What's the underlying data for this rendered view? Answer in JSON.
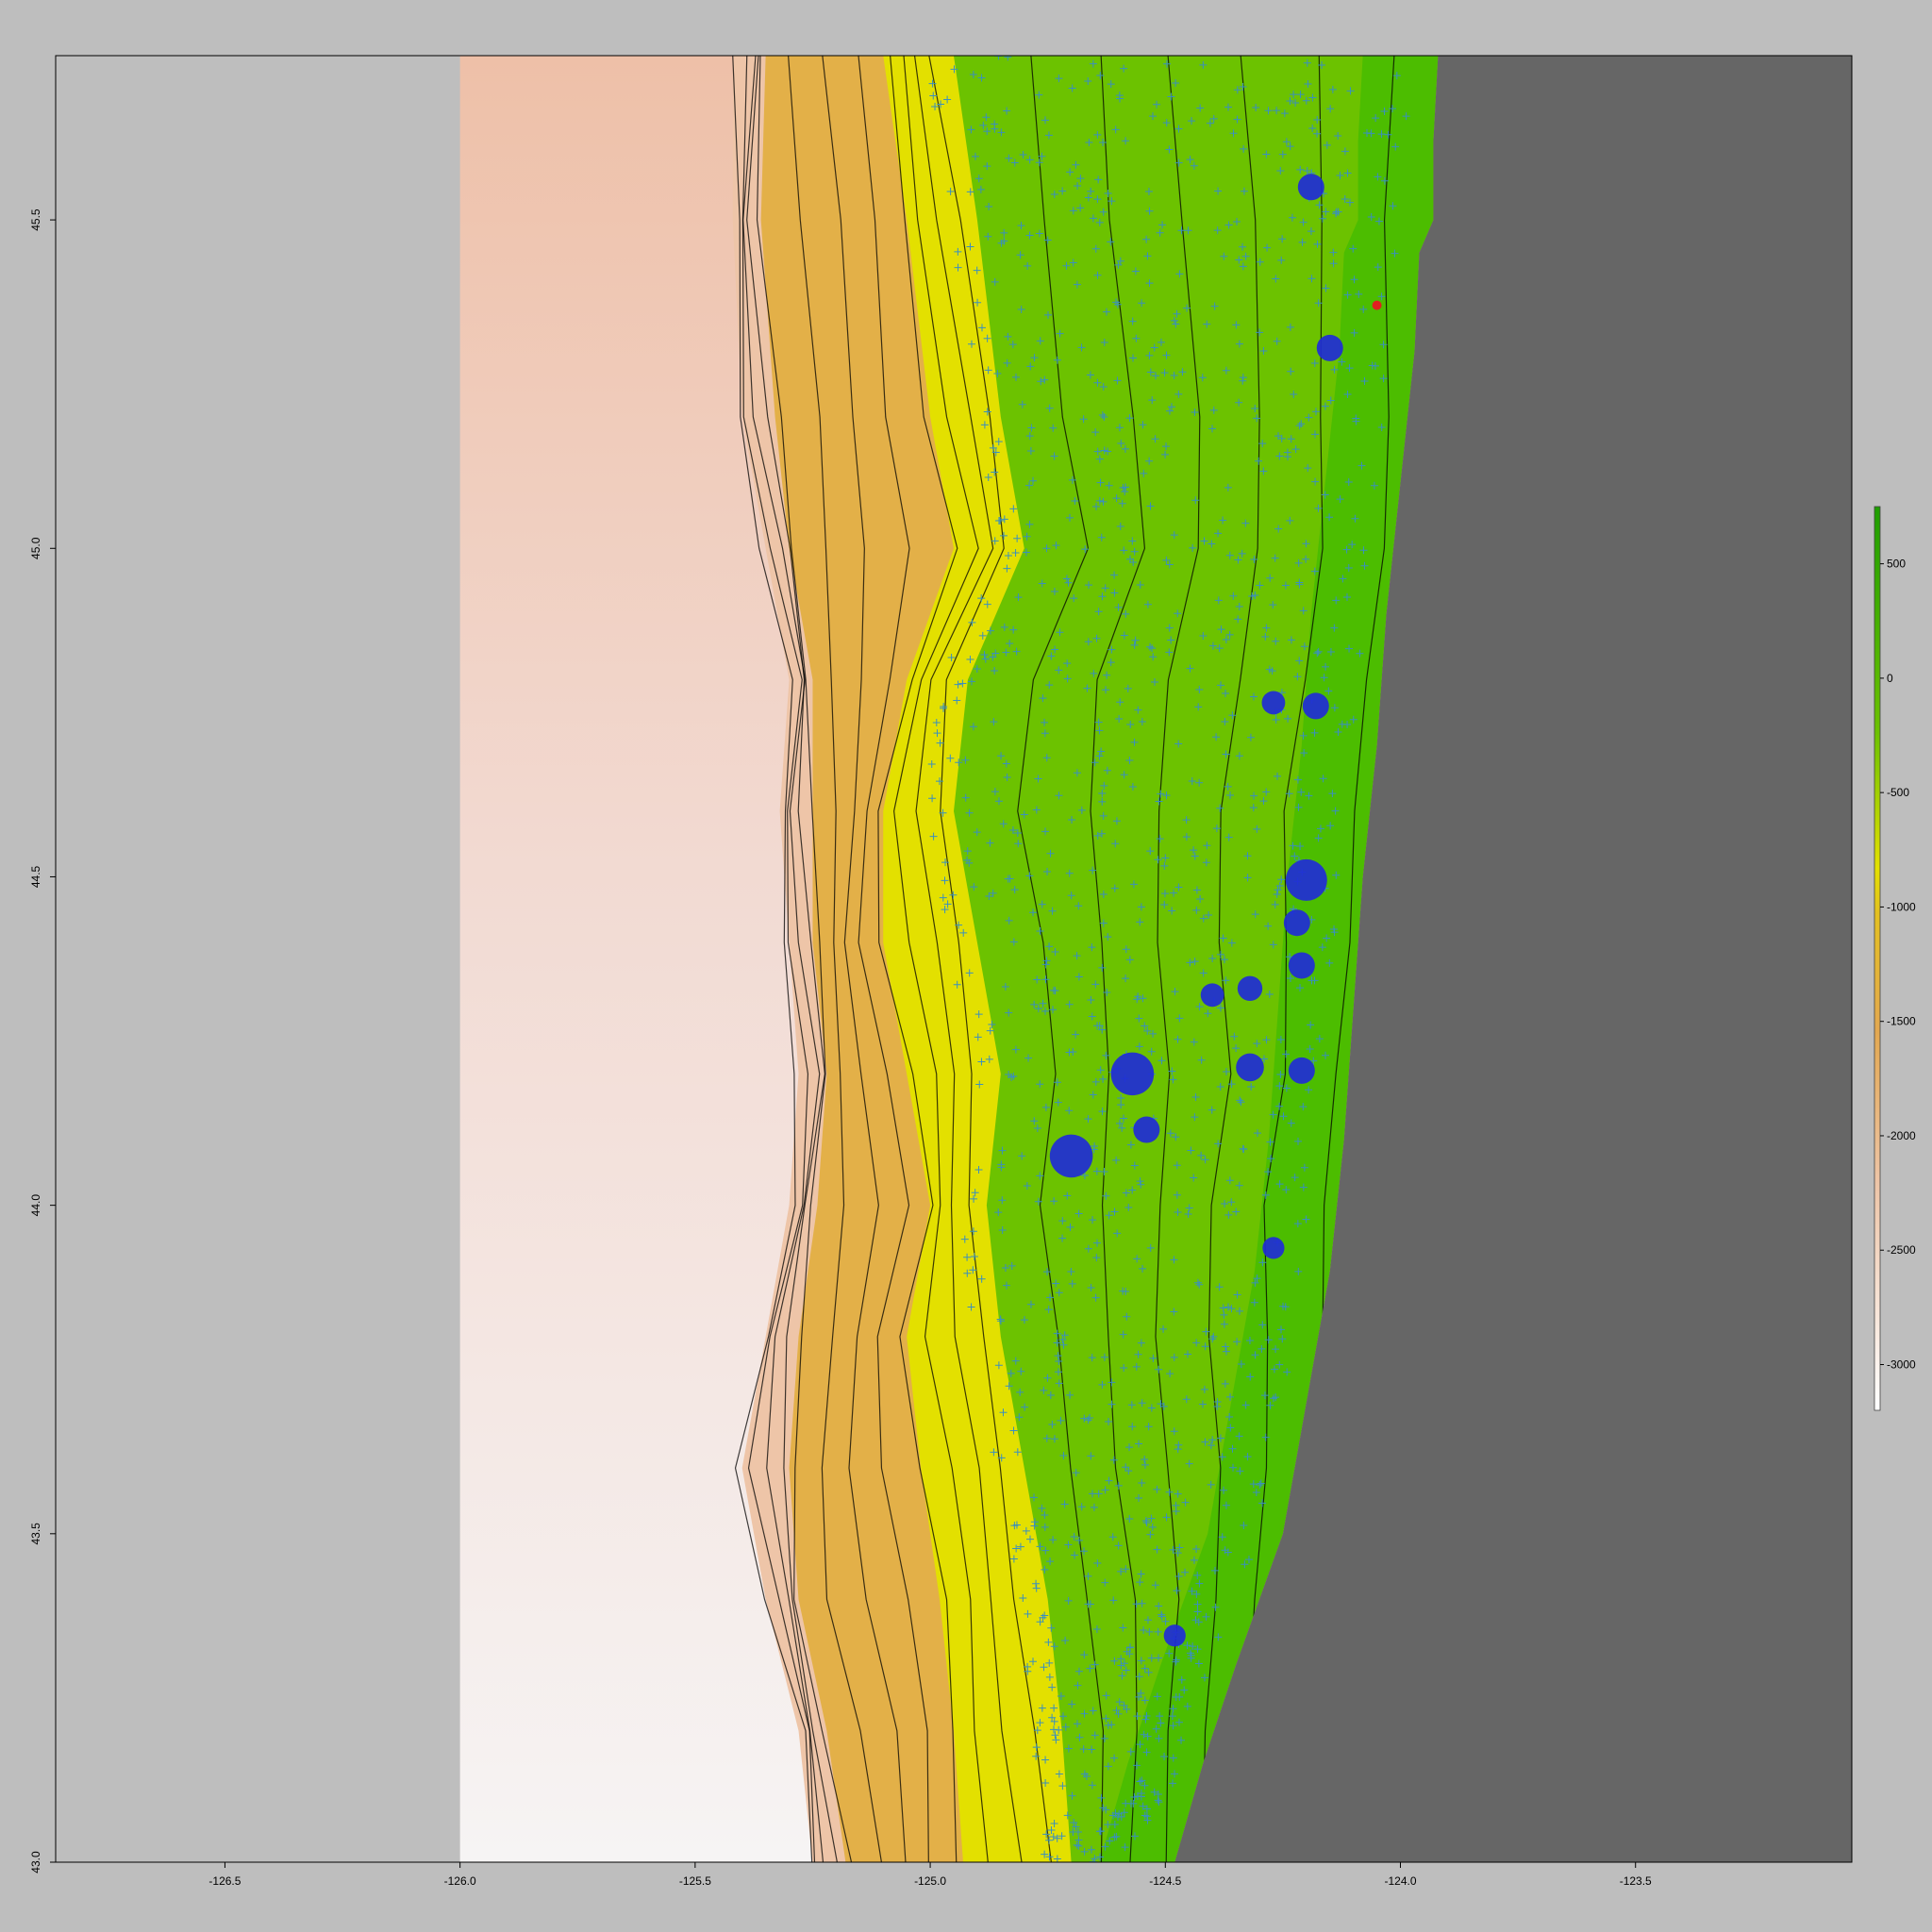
{
  "map": {
    "x_axis": {
      "range": [
        -126.86,
        -123.04
      ],
      "ticks": [
        -126.5,
        -126.0,
        -125.5,
        -125.0,
        -124.5,
        -124.0,
        -123.5
      ],
      "tick_labels": [
        "-126.5",
        "-126.0",
        "-125.5",
        "-125.0",
        "-124.5",
        "-124.0",
        "-123.5"
      ]
    },
    "y_axis": {
      "range": [
        43.0,
        45.75
      ],
      "ticks": [
        43.0,
        43.5,
        44.0,
        44.5,
        45.0,
        45.5
      ],
      "tick_labels": [
        "43.0",
        "43.5",
        "44.0",
        "44.5",
        "45.0",
        "45.5"
      ]
    },
    "raster_lon_range": [
      -126.0,
      -123.5
    ],
    "colors": {
      "background": "#bebebe",
      "land": "#666666",
      "deep_water": "#f6f2f2",
      "slope": "#eec5a8",
      "mid_depth": "#e3b048",
      "shelf_edge": "#e3e000",
      "shelf": "#6cc200",
      "nearshore": "#4cbd00",
      "sample_points": "#1f2dd6",
      "highlight_point": "#e02020",
      "cross_markers": "#3a8fbf"
    },
    "legend": {
      "ticks": [
        500,
        0,
        -500,
        -1000,
        -1500,
        -2000,
        -2500,
        -3000
      ],
      "tick_labels": [
        "500",
        "0",
        "-500",
        "-1000",
        "-1500",
        "-2000",
        "-2500",
        "-3000"
      ],
      "range": [
        -3200,
        750
      ]
    },
    "coastline": [
      [
        45.75,
        -123.92
      ],
      [
        45.62,
        -123.93
      ],
      [
        45.5,
        -123.93
      ],
      [
        45.45,
        -123.96
      ],
      [
        45.3,
        -123.97
      ],
      [
        45.1,
        -124.0
      ],
      [
        44.9,
        -124.03
      ],
      [
        44.7,
        -124.05
      ],
      [
        44.5,
        -124.08
      ],
      [
        44.3,
        -124.1
      ],
      [
        44.1,
        -124.12
      ],
      [
        43.9,
        -124.15
      ],
      [
        43.7,
        -124.2
      ],
      [
        43.5,
        -124.25
      ],
      [
        43.3,
        -124.35
      ],
      [
        43.15,
        -124.42
      ],
      [
        43.0,
        -124.48
      ]
    ],
    "slope_base": [
      [
        45.75,
        -125.42
      ],
      [
        45.5,
        -125.42
      ],
      [
        45.2,
        -125.4
      ],
      [
        45.0,
        -125.35
      ],
      [
        44.8,
        -125.3
      ],
      [
        44.6,
        -125.32
      ],
      [
        44.4,
        -125.3
      ],
      [
        44.2,
        -125.28
      ],
      [
        44.0,
        -125.3
      ],
      [
        43.8,
        -125.35
      ],
      [
        43.6,
        -125.4
      ],
      [
        43.4,
        -125.35
      ],
      [
        43.2,
        -125.28
      ],
      [
        43.0,
        -125.25
      ]
    ],
    "mid_depth_edge": [
      [
        45.75,
        -125.35
      ],
      [
        45.5,
        -125.36
      ],
      [
        45.2,
        -125.33
      ],
      [
        45.0,
        -125.3
      ],
      [
        44.8,
        -125.25
      ],
      [
        44.6,
        -125.25
      ],
      [
        44.4,
        -125.25
      ],
      [
        44.2,
        -125.22
      ],
      [
        44.0,
        -125.24
      ],
      [
        43.8,
        -125.28
      ],
      [
        43.6,
        -125.3
      ],
      [
        43.4,
        -125.28
      ],
      [
        43.2,
        -125.22
      ],
      [
        43.0,
        -125.18
      ]
    ],
    "shelf_edge_line": [
      [
        45.75,
        -125.1
      ],
      [
        45.5,
        -125.05
      ],
      [
        45.2,
        -125.0
      ],
      [
        45.0,
        -124.95
      ],
      [
        44.8,
        -125.05
      ],
      [
        44.6,
        -125.1
      ],
      [
        44.4,
        -125.1
      ],
      [
        44.2,
        -125.05
      ],
      [
        44.0,
        -125.0
      ],
      [
        43.8,
        -125.05
      ],
      [
        43.6,
        -125.02
      ],
      [
        43.4,
        -124.98
      ],
      [
        43.2,
        -124.95
      ],
      [
        43.0,
        -124.93
      ]
    ],
    "shelf_line": [
      [
        45.75,
        -124.95
      ],
      [
        45.5,
        -124.9
      ],
      [
        45.2,
        -124.85
      ],
      [
        45.0,
        -124.8
      ],
      [
        44.8,
        -124.92
      ],
      [
        44.6,
        -124.95
      ],
      [
        44.4,
        -124.9
      ],
      [
        44.2,
        -124.85
      ],
      [
        44.0,
        -124.88
      ],
      [
        43.8,
        -124.85
      ],
      [
        43.6,
        -124.8
      ],
      [
        43.4,
        -124.75
      ],
      [
        43.2,
        -124.72
      ],
      [
        43.0,
        -124.7
      ]
    ],
    "sample_points": [
      {
        "lon": -124.19,
        "lat": 45.55,
        "size": 1
      },
      {
        "lon": -124.15,
        "lat": 45.305,
        "size": 1
      },
      {
        "lon": -124.27,
        "lat": 44.765,
        "size": 0.8
      },
      {
        "lon": -124.18,
        "lat": 44.76,
        "size": 1
      },
      {
        "lon": -124.2,
        "lat": 44.495,
        "size": 2
      },
      {
        "lon": -124.22,
        "lat": 44.43,
        "size": 1
      },
      {
        "lon": -124.21,
        "lat": 44.365,
        "size": 1
      },
      {
        "lon": -124.32,
        "lat": 44.33,
        "size": 0.9
      },
      {
        "lon": -124.4,
        "lat": 44.32,
        "size": 0.8
      },
      {
        "lon": -124.32,
        "lat": 44.21,
        "size": 1.1
      },
      {
        "lon": -124.21,
        "lat": 44.205,
        "size": 1
      },
      {
        "lon": -124.57,
        "lat": 44.2,
        "size": 2.1
      },
      {
        "lon": -124.54,
        "lat": 44.115,
        "size": 1
      },
      {
        "lon": -124.7,
        "lat": 44.075,
        "size": 2.1
      },
      {
        "lon": -124.27,
        "lat": 43.935,
        "size": 0.7
      },
      {
        "lon": -124.48,
        "lat": 43.345,
        "size": 0.7
      }
    ],
    "highlight_point": {
      "lon": -124.05,
      "lat": 45.37
    }
  }
}
